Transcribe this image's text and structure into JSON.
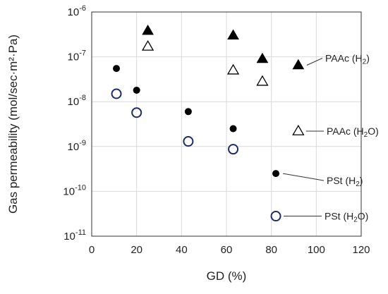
{
  "chart_data": {
    "type": "scatter",
    "xlabel": "GD (%)",
    "ylabel": "Gas permeability (mol/sec·m²·Pa)",
    "xlim": [
      0,
      120
    ],
    "ylim_exponents": [
      -11,
      -6
    ],
    "y_scale": "log",
    "grid": true,
    "x_ticks": [
      "0",
      "20",
      "40",
      "60",
      "80",
      "100",
      "120"
    ],
    "y_ticks": [
      {
        "base": "10",
        "exp": "-11"
      },
      {
        "base": "10",
        "exp": "-10"
      },
      {
        "base": "10",
        "exp": "-9"
      },
      {
        "base": "10",
        "exp": "-8"
      },
      {
        "base": "10",
        "exp": "-7"
      },
      {
        "base": "10",
        "exp": "-6"
      }
    ],
    "series": [
      {
        "name": "PAAc (H2)",
        "label_main": "PAAc (H",
        "label_sub": "2",
        "label_end": ")",
        "marker": "triangle-filled",
        "color": "#000000",
        "x": [
          25,
          63,
          76,
          92
        ],
        "y": [
          3.8e-07,
          3e-07,
          9e-08,
          6.5e-08
        ]
      },
      {
        "name": "PAAc (H2O)",
        "label_main": "PAAc (H",
        "label_sub": "2",
        "label_end": "O)",
        "marker": "triangle-open",
        "color": "#000000",
        "x": [
          25,
          63,
          76,
          92
        ],
        "y": [
          1.7e-07,
          5e-08,
          2.8e-08,
          2.2e-09
        ]
      },
      {
        "name": "PSt (H2)",
        "label_main": "PSt (H",
        "label_sub": "2",
        "label_end": ")",
        "marker": "circle-filled",
        "color": "#000000",
        "x": [
          11,
          20,
          43,
          63,
          82
        ],
        "y": [
          5.5e-08,
          1.8e-08,
          6e-09,
          2.5e-09,
          2.5e-10
        ]
      },
      {
        "name": "PSt (H2O)",
        "label_main": "PSt (H",
        "label_sub": "2",
        "label_end": "O)",
        "marker": "circle-open",
        "color": "#1f2a6b",
        "x": [
          11,
          20,
          43,
          63,
          82
        ],
        "y": [
          1.5e-08,
          5.7e-09,
          1.3e-09,
          8.7e-10,
          2.8e-11
        ]
      }
    ]
  }
}
